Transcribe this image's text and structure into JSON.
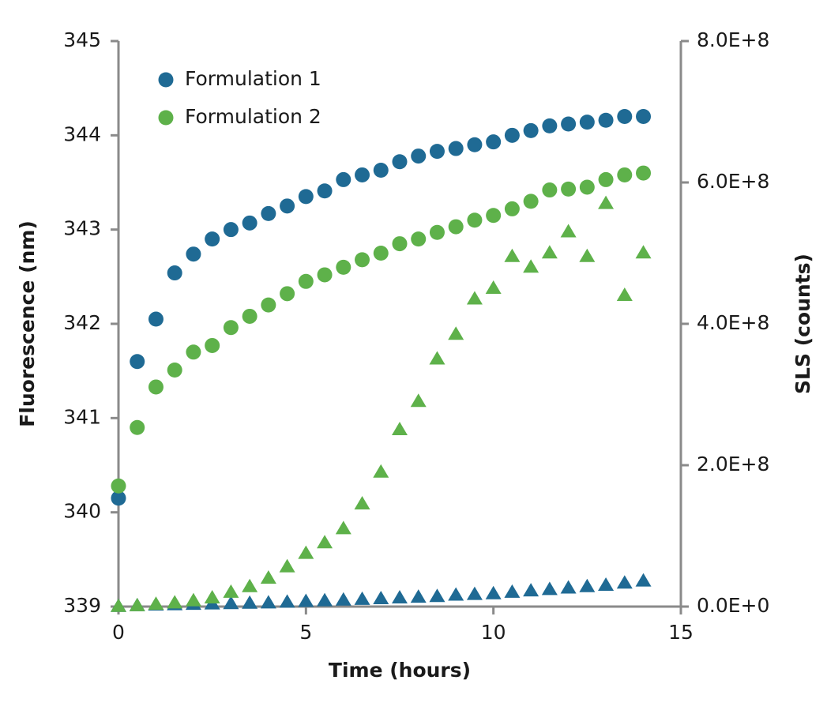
{
  "chart_data": {
    "type": "scatter",
    "x_label": "Time (hours)",
    "y_label": "Fluorescence (nm)",
    "y2_label": "SLS (counts)",
    "xlim": [
      0,
      15
    ],
    "xticks": [
      0,
      5,
      10,
      15
    ],
    "ylim": [
      339,
      345
    ],
    "yticks": [
      339,
      340,
      341,
      342,
      343,
      344,
      345
    ],
    "y2lim": [
      0,
      800000000
    ],
    "y2ticks": [
      {
        "value": 0,
        "label": "0.0E+0"
      },
      {
        "value": 200000000,
        "label": "2.0E+8"
      },
      {
        "value": 400000000,
        "label": "4.0E+8"
      },
      {
        "value": 600000000,
        "label": "6.0E+8"
      },
      {
        "value": 800000000,
        "label": "8.0E+8"
      }
    ],
    "legend": "upper left",
    "x": [
      0,
      0.5,
      1,
      1.5,
      2,
      2.5,
      3,
      3.5,
      4,
      4.5,
      5,
      5.5,
      6,
      6.5,
      7,
      7.5,
      8,
      8.5,
      9,
      9.5,
      10,
      10.5,
      11,
      11.5,
      12,
      12.5,
      13,
      13.5,
      14
    ],
    "series": [
      {
        "name": "Formulation 1",
        "color": "#1f6a94",
        "marker": "circle",
        "values": [
          340.15,
          341.6,
          342.05,
          342.54,
          342.74,
          342.9,
          343.0,
          343.07,
          343.17,
          343.25,
          343.35,
          343.41,
          343.53,
          343.58,
          343.63,
          343.72,
          343.78,
          343.83,
          343.86,
          343.9,
          343.93,
          344.0,
          344.05,
          344.1,
          344.12,
          344.14,
          344.16,
          344.2,
          344.2
        ]
      },
      {
        "name": "Formulation 2",
        "color": "#5eb14a",
        "marker": "circle",
        "values": [
          340.28,
          340.9,
          341.33,
          341.51,
          341.7,
          341.77,
          341.96,
          342.08,
          342.2,
          342.32,
          342.45,
          342.52,
          342.6,
          342.68,
          342.75,
          342.85,
          342.9,
          342.97,
          343.03,
          343.1,
          343.15,
          343.22,
          343.3,
          343.42,
          343.43,
          343.45,
          343.53,
          343.58,
          343.6
        ]
      },
      {
        "color": "#1f6a94",
        "marker": "triangle",
        "axis": "y2",
        "values": [
          0,
          1000000,
          2000000,
          2500000,
          3000000,
          3500000,
          4000000,
          4500000,
          5000000,
          6000000,
          7000000,
          8000000,
          9000000,
          10000000,
          11000000,
          12000000,
          13000000,
          14000000,
          16000000,
          17000000,
          18000000,
          20000000,
          22000000,
          24000000,
          26000000,
          28000000,
          30000000,
          33000000,
          36000000
        ]
      },
      {
        "color": "#5eb14a",
        "marker": "triangle",
        "axis": "y2",
        "values": [
          0,
          1000000,
          3000000,
          5000000,
          8000000,
          12000000,
          20000000,
          28000000,
          40000000,
          56000000,
          75000000,
          90000000,
          110000000,
          145000000,
          190000000,
          250000000,
          290000000,
          350000000,
          385000000,
          435000000,
          450000000,
          495000000,
          480000000,
          500000000,
          530000000,
          495000000,
          570000000,
          440000000,
          500000000
        ]
      }
    ]
  }
}
